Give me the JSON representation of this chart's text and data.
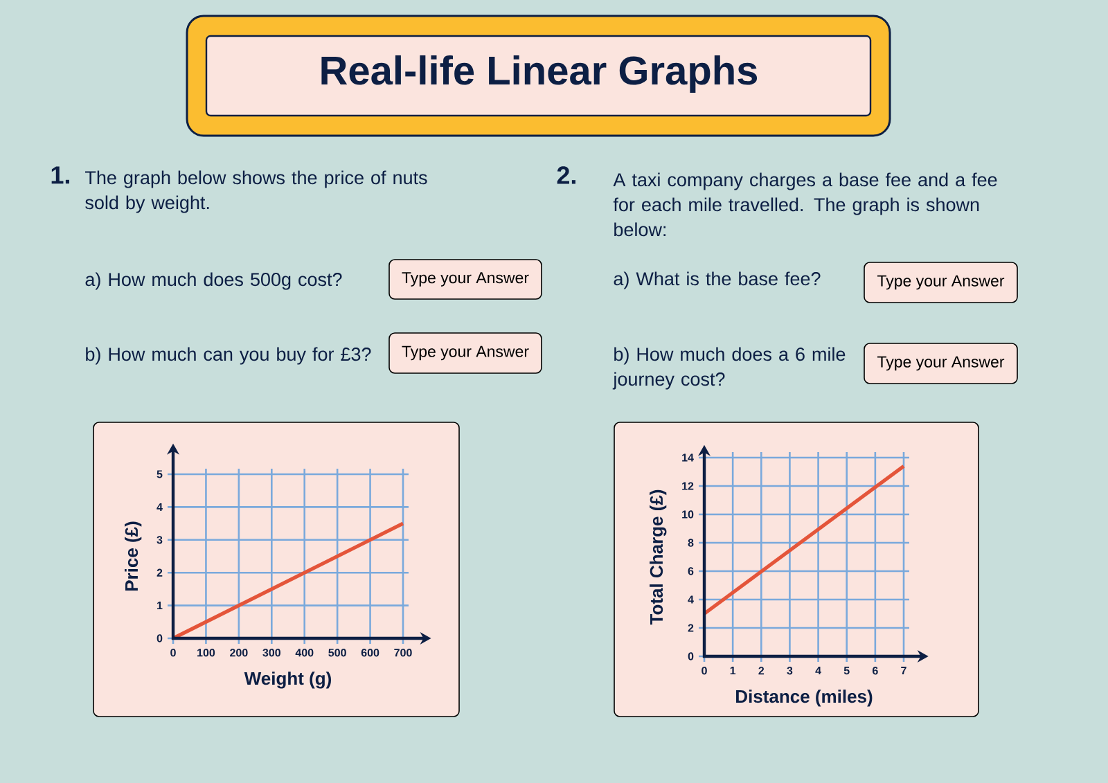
{
  "chart_data": [
    {
      "type": "line",
      "title": "Real-life Linear Graphs",
      "annotations": [
        "1.",
        "The graph below shows the price of nuts sold by weight.",
        "a) How much does 500g cost?",
        "Type your Answer",
        "b) How much can you buy for £3?",
        "Type your Answer"
      ],
      "xlabel": "Weight (g)",
      "ylabel": "Price (£)",
      "x": [
        0,
        700
      ],
      "values": [
        0,
        3.5
      ],
      "color": "#e4553a",
      "xlim": [
        0,
        700
      ],
      "ylim": [
        0,
        5
      ],
      "xticks": [
        0,
        100,
        200,
        300,
        400,
        500,
        600,
        700
      ],
      "yticks": [
        0,
        1,
        2,
        3,
        4,
        5
      ],
      "grid": true
    },
    {
      "type": "line",
      "annotations": [
        "2.",
        "A taxi company charges a base fee and a fee for each mile travelled. The graph is shown below:",
        "a) What is the base fee?",
        "Type your Answer",
        "b) How much does a 6 mile journey cost?",
        "Type your Answer"
      ],
      "xlabel": "Distance (miles)",
      "ylabel": "Total Charge (£)",
      "x": [
        0,
        7
      ],
      "values": [
        3,
        13.4
      ],
      "color": "#e4553a",
      "xlim": [
        0,
        7
      ],
      "ylim": [
        0,
        14
      ],
      "xticks": [
        0,
        1,
        2,
        3,
        4,
        5,
        6,
        7
      ],
      "yticks": [
        0,
        2,
        4,
        6,
        8,
        10,
        12,
        14
      ],
      "grid": true
    }
  ]
}
